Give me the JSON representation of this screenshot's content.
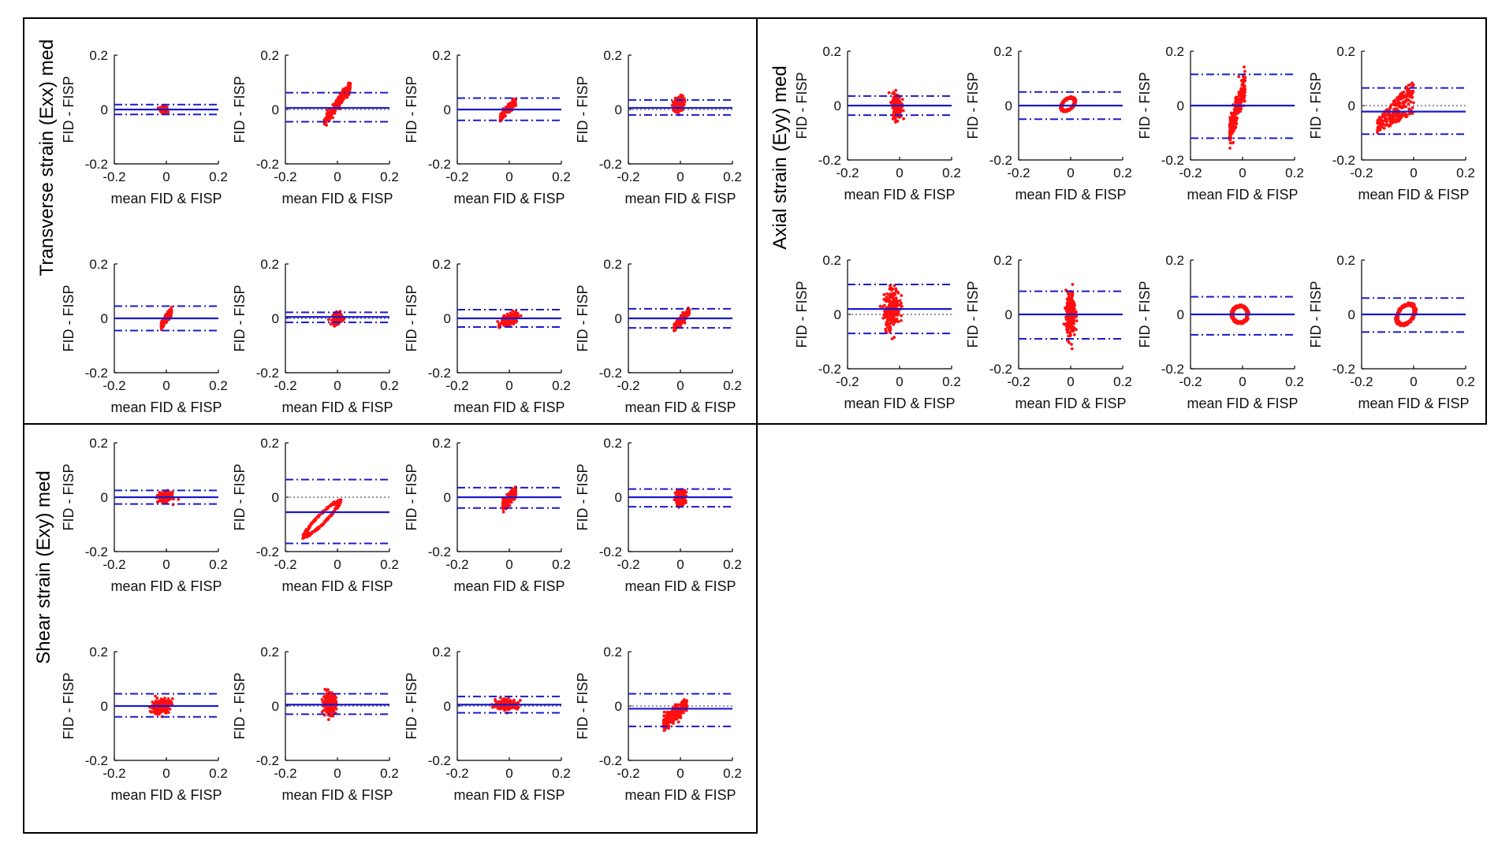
{
  "chart_data": {
    "type": "scatter",
    "plot_kind": "Bland-Altman",
    "xlabel": "mean FID & FISP",
    "ylabel": "FID - FISP",
    "xlim": [
      -0.2,
      0.2
    ],
    "ylim": [
      -0.2,
      0.2
    ],
    "xticks": [
      "-0.2",
      "0",
      "0.2"
    ],
    "yticks": [
      "0.2",
      "0",
      "-0.2"
    ],
    "colors": {
      "points": "#ff1010",
      "lines": "#1a1acd",
      "zero": "#555555"
    },
    "groups": [
      {
        "id": "exx",
        "title": "Transverse strain (Exx) med",
        "plots": [
          {
            "mean": 0.0,
            "upper": 0.018,
            "lower": -0.018,
            "cloud": {
              "cx": -0.01,
              "cy": 0.0,
              "sx": 0.02,
              "sy": 0.012,
              "slope": 0.0,
              "shape": "blob"
            }
          },
          {
            "mean": 0.006,
            "upper": 0.062,
            "lower": -0.045,
            "cloud": {
              "cx": 0.0,
              "cy": 0.02,
              "sx": 0.1,
              "sy": 0.03,
              "slope": 1.4,
              "shape": "band"
            }
          },
          {
            "mean": 0.0,
            "upper": 0.042,
            "lower": -0.04,
            "cloud": {
              "cx": -0.005,
              "cy": 0.0,
              "sx": 0.06,
              "sy": 0.02,
              "slope": 1.0,
              "shape": "band"
            }
          },
          {
            "mean": 0.006,
            "upper": 0.035,
            "lower": -0.02,
            "cloud": {
              "cx": -0.005,
              "cy": 0.02,
              "sx": 0.03,
              "sy": 0.03,
              "slope": 0.3,
              "shape": "blob"
            }
          },
          {
            "mean": 0.0,
            "upper": 0.045,
            "lower": -0.045,
            "cloud": {
              "cx": 0.0,
              "cy": 0.0,
              "sx": 0.04,
              "sy": 0.02,
              "slope": 1.3,
              "shape": "band"
            }
          },
          {
            "mean": 0.005,
            "upper": 0.022,
            "lower": -0.015,
            "cloud": {
              "cx": 0.0,
              "cy": 0.0,
              "sx": 0.03,
              "sy": 0.02,
              "slope": 0.2,
              "shape": "blob"
            }
          },
          {
            "mean": 0.0,
            "upper": 0.032,
            "lower": -0.032,
            "cloud": {
              "cx": 0.0,
              "cy": -0.005,
              "sx": 0.05,
              "sy": 0.02,
              "slope": 0.4,
              "shape": "blob"
            }
          },
          {
            "mean": 0.0,
            "upper": 0.035,
            "lower": -0.035,
            "cloud": {
              "cx": 0.005,
              "cy": -0.005,
              "sx": 0.06,
              "sy": 0.02,
              "slope": 1.0,
              "shape": "band"
            }
          }
        ]
      },
      {
        "id": "eyy",
        "title": "Axial strain (Eyy) med",
        "plots": [
          {
            "mean": 0.0,
            "upper": 0.035,
            "lower": -0.035,
            "cloud": {
              "cx": -0.01,
              "cy": 0.0,
              "sx": 0.03,
              "sy": 0.05,
              "slope": 0.0,
              "shape": "blob"
            }
          },
          {
            "mean": 0.0,
            "upper": 0.05,
            "lower": -0.05,
            "cloud": {
              "cx": -0.01,
              "cy": 0.005,
              "sx": 0.06,
              "sy": 0.05,
              "slope": 0.4,
              "shape": "loop"
            }
          },
          {
            "mean": 0.0,
            "upper": 0.115,
            "lower": -0.12,
            "cloud": {
              "cx": -0.02,
              "cy": -0.01,
              "sx": 0.06,
              "sy": 0.08,
              "slope": 3.0,
              "shape": "band"
            }
          },
          {
            "mean": -0.022,
            "upper": 0.065,
            "lower": -0.105,
            "cloud": {
              "cx": -0.07,
              "cy": -0.02,
              "sx": 0.14,
              "sy": 0.08,
              "slope": 0.8,
              "shape": "fan"
            }
          },
          {
            "mean": 0.02,
            "upper": 0.11,
            "lower": -0.07,
            "cloud": {
              "cx": -0.03,
              "cy": 0.02,
              "sx": 0.05,
              "sy": 0.08,
              "slope": 0.5,
              "shape": "blob"
            }
          },
          {
            "mean": 0.0,
            "upper": 0.085,
            "lower": -0.09,
            "cloud": {
              "cx": 0.0,
              "cy": 0.0,
              "sx": 0.03,
              "sy": 0.09,
              "slope": 0.0,
              "shape": "blob"
            }
          },
          {
            "mean": 0.0,
            "upper": 0.065,
            "lower": -0.075,
            "cloud": {
              "cx": -0.01,
              "cy": 0.0,
              "sx": 0.07,
              "sy": 0.07,
              "slope": 0.0,
              "shape": "loop"
            }
          },
          {
            "mean": 0.0,
            "upper": 0.06,
            "lower": -0.065,
            "cloud": {
              "cx": -0.03,
              "cy": 0.0,
              "sx": 0.08,
              "sy": 0.08,
              "slope": 0.4,
              "shape": "loop"
            }
          }
        ]
      },
      {
        "id": "exy",
        "title": "Shear strain (Exy) med",
        "plots": [
          {
            "mean": 0.0,
            "upper": 0.025,
            "lower": -0.025,
            "cloud": {
              "cx": -0.005,
              "cy": 0.0,
              "sx": 0.04,
              "sy": 0.02,
              "slope": 0.0,
              "shape": "blob"
            }
          },
          {
            "mean": -0.055,
            "upper": 0.065,
            "lower": -0.17,
            "cloud": {
              "cx": -0.06,
              "cy": -0.08,
              "sx": 0.15,
              "sy": 0.05,
              "slope": 0.9,
              "shape": "loop"
            }
          },
          {
            "mean": 0.0,
            "upper": 0.035,
            "lower": -0.04,
            "cloud": {
              "cx": 0.0,
              "cy": -0.005,
              "sx": 0.05,
              "sy": 0.03,
              "slope": 1.0,
              "shape": "band"
            }
          },
          {
            "mean": 0.0,
            "upper": 0.03,
            "lower": -0.035,
            "cloud": {
              "cx": 0.0,
              "cy": 0.0,
              "sx": 0.03,
              "sy": 0.03,
              "slope": 0.0,
              "shape": "blob"
            }
          },
          {
            "mean": 0.0,
            "upper": 0.045,
            "lower": -0.04,
            "cloud": {
              "cx": -0.02,
              "cy": 0.0,
              "sx": 0.06,
              "sy": 0.03,
              "slope": 0.2,
              "shape": "blob"
            }
          },
          {
            "mean": 0.005,
            "upper": 0.045,
            "lower": -0.03,
            "cloud": {
              "cx": -0.03,
              "cy": 0.01,
              "sx": 0.04,
              "sy": 0.04,
              "slope": 0.0,
              "shape": "blob"
            }
          },
          {
            "mean": 0.005,
            "upper": 0.035,
            "lower": -0.025,
            "cloud": {
              "cx": -0.01,
              "cy": 0.005,
              "sx": 0.07,
              "sy": 0.02,
              "slope": 0.0,
              "shape": "blob"
            }
          },
          {
            "mean": -0.01,
            "upper": 0.045,
            "lower": -0.075,
            "cloud": {
              "cx": -0.02,
              "cy": -0.03,
              "sx": 0.09,
              "sy": 0.04,
              "slope": 0.8,
              "shape": "band"
            }
          }
        ]
      }
    ]
  }
}
